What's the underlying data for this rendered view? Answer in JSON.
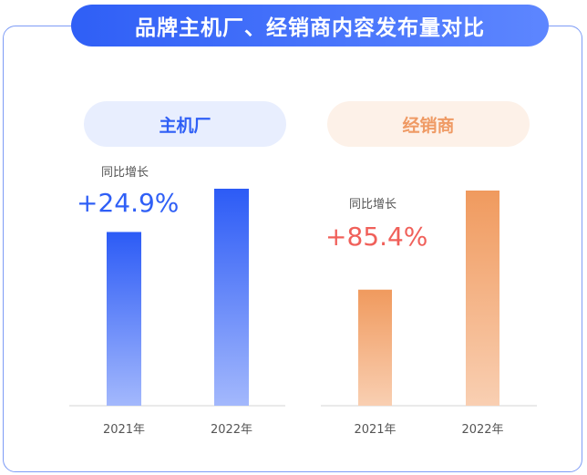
{
  "title": "品牌主机厂、经销商内容发布量对比",
  "panels": [
    {
      "name": "主机厂",
      "yoy_label": "同比增长",
      "yoy_value": "+24.9%"
    },
    {
      "name": "经销商",
      "yoy_label": "同比增长",
      "yoy_value": "+85.4%"
    }
  ],
  "colors": {
    "blue_top": "#2c5bf6",
    "blue_bottom": "#a3b8fc",
    "orange_top": "#f09a5e",
    "orange_bottom": "#f9cfb2",
    "growth_blue": "#2f5ff6",
    "growth_red": "#f0605a"
  },
  "chart_data": [
    {
      "type": "bar",
      "title": "主机厂",
      "categories": [
        "2021年",
        "2022年"
      ],
      "values": [
        1,
        1.249
      ],
      "annotation": "同比增长 +24.9%"
    },
    {
      "type": "bar",
      "title": "经销商",
      "categories": [
        "2021年",
        "2022年"
      ],
      "values": [
        1,
        1.854
      ],
      "annotation": "同比增长 +85.4%"
    }
  ]
}
